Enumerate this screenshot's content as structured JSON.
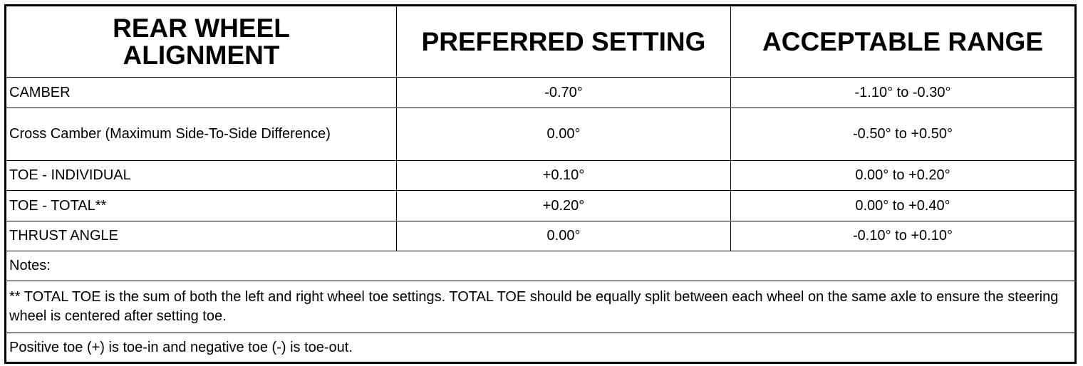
{
  "table": {
    "headers": [
      "REAR WHEEL ALIGNMENT",
      "PREFERRED SETTING",
      "ACCEPTABLE RANGE"
    ],
    "rows": [
      {
        "parameter": "CAMBER",
        "preferred": "-0.70°",
        "range": "-1.10° to -0.30°"
      },
      {
        "parameter": "Cross Camber (Maximum Side-To-Side Difference)",
        "preferred": "0.00°",
        "range": "-0.50° to +0.50°"
      },
      {
        "parameter": "TOE - INDIVIDUAL",
        "preferred": "+0.10°",
        "range": "0.00° to +0.20°"
      },
      {
        "parameter": "TOE - TOTAL**",
        "preferred": "+0.20°",
        "range": "0.00° to +0.40°"
      },
      {
        "parameter": "THRUST ANGLE",
        "preferred": "0.00°",
        "range": "-0.10° to +0.10°"
      }
    ],
    "notes": [
      "Notes:",
      "** TOTAL TOE is the sum of both the left and right wheel toe settings. TOTAL TOE should be equally split between each wheel on the same axle to ensure the steering wheel is centered after setting toe.",
      "Positive toe (+) is toe-in and negative toe (-) is toe-out."
    ]
  }
}
